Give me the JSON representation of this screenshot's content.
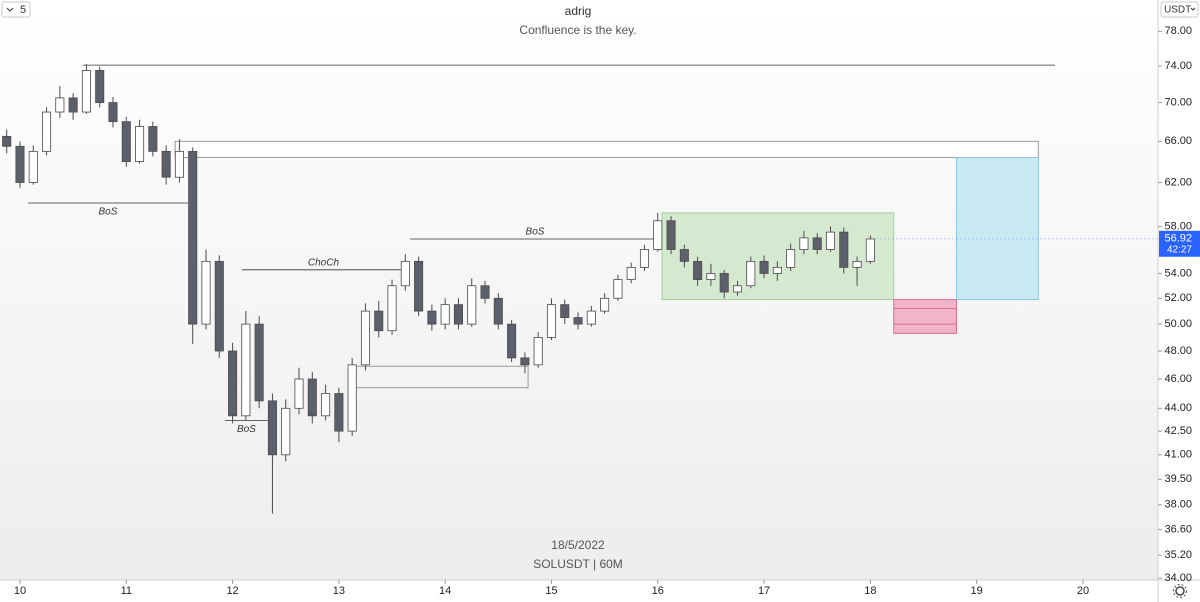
{
  "chart_data": {
    "type": "candlestick",
    "title": "adrig",
    "subtitle": "Confluence is the key.",
    "interval": "5",
    "currency": "USDT",
    "date_label": "18/5/2022",
    "symbol_label": "SOLUSDT | 60M",
    "log_scale": true,
    "up_color": "#ffffff",
    "down_color": "#5d606b",
    "wick_color": "#4a4a4a",
    "xlim": [
      9.812,
      20.706
    ],
    "xticks": [
      10,
      11,
      12,
      13,
      14,
      15,
      16,
      17,
      18,
      19,
      20
    ],
    "ylim": [
      33.9,
      81.8
    ],
    "yticks": [
      {
        "value": 78,
        "label": "78.00"
      },
      {
        "value": 74,
        "label": "74.00"
      },
      {
        "value": 70,
        "label": "70.00"
      },
      {
        "value": 66,
        "label": "66.00"
      },
      {
        "value": 62,
        "label": "62.00"
      },
      {
        "value": 58,
        "label": "58.00"
      },
      {
        "value": 54,
        "label": "54.00"
      },
      {
        "value": 52,
        "label": "52.00"
      },
      {
        "value": 50,
        "label": "50.00"
      },
      {
        "value": 48,
        "label": "48.00"
      },
      {
        "value": 46,
        "label": "46.00"
      },
      {
        "value": 44,
        "label": "44.00"
      },
      {
        "value": 42.5,
        "label": "42.50"
      },
      {
        "value": 41,
        "label": "41.00"
      },
      {
        "value": 39.5,
        "label": "39.50"
      },
      {
        "value": 38,
        "label": "38.00"
      },
      {
        "value": 36.6,
        "label": "36.60"
      },
      {
        "value": 35.2,
        "label": "35.20"
      },
      {
        "value": 34,
        "label": "34.00"
      }
    ],
    "last_price": {
      "value": 56.92,
      "label": "56.92",
      "timer": "42:27",
      "color": "#2962ff"
    },
    "x": [
      9.875,
      10.0,
      10.125,
      10.25,
      10.375,
      10.5,
      10.625,
      10.75,
      10.875,
      11.0,
      11.125,
      11.25,
      11.375,
      11.5,
      11.625,
      11.75,
      11.875,
      12.0,
      12.125,
      12.25,
      12.375,
      12.5,
      12.625,
      12.75,
      12.875,
      13.0,
      13.125,
      13.25,
      13.375,
      13.5,
      13.625,
      13.75,
      13.875,
      14.0,
      14.125,
      14.25,
      14.375,
      14.5,
      14.625,
      14.75,
      14.875,
      15.0,
      15.125,
      15.25,
      15.375,
      15.5,
      15.625,
      15.75,
      15.875,
      16.0,
      16.125,
      16.25,
      16.375,
      16.5,
      16.625,
      16.75,
      16.875,
      17.0,
      17.125,
      17.25,
      17.375,
      17.5,
      17.625,
      17.75,
      17.875,
      18.0
    ],
    "candles": [
      [
        66.5,
        67.2,
        64.8,
        65.5
      ],
      [
        65.5,
        66.0,
        61.5,
        62.0
      ],
      [
        62.0,
        65.6,
        61.8,
        65.0
      ],
      [
        65.0,
        69.5,
        64.6,
        69.0
      ],
      [
        69.0,
        71.8,
        68.4,
        70.5
      ],
      [
        70.5,
        71.0,
        68.2,
        69.0
      ],
      [
        69.0,
        74.2,
        68.8,
        73.5
      ],
      [
        73.5,
        73.9,
        69.5,
        70.0
      ],
      [
        70.0,
        70.6,
        67.4,
        68.0
      ],
      [
        68.0,
        68.5,
        63.5,
        64.0
      ],
      [
        64.0,
        68.2,
        63.8,
        67.5
      ],
      [
        67.5,
        68.0,
        64.5,
        65.0
      ],
      [
        65.0,
        65.6,
        61.8,
        62.5
      ],
      [
        62.5,
        66.2,
        62.0,
        65.0
      ],
      [
        65.0,
        65.4,
        48.5,
        50.0
      ],
      [
        50.0,
        56.0,
        49.6,
        55.0
      ],
      [
        55.0,
        55.5,
        47.5,
        48.0
      ],
      [
        48.0,
        48.6,
        43.0,
        43.5
      ],
      [
        43.5,
        51.0,
        43.2,
        50.0
      ],
      [
        50.0,
        50.6,
        44.0,
        44.5
      ],
      [
        44.5,
        45.0,
        37.5,
        41.0
      ],
      [
        41.0,
        44.6,
        40.6,
        44.0
      ],
      [
        44.0,
        46.8,
        43.6,
        46.0
      ],
      [
        46.0,
        46.5,
        43.0,
        43.5
      ],
      [
        43.5,
        45.6,
        43.2,
        45.0
      ],
      [
        45.0,
        45.4,
        41.8,
        42.5
      ],
      [
        42.5,
        47.5,
        42.2,
        47.0
      ],
      [
        47.0,
        51.6,
        46.6,
        51.0
      ],
      [
        51.0,
        51.8,
        49.0,
        49.5
      ],
      [
        49.5,
        53.5,
        49.2,
        53.0
      ],
      [
        53.0,
        55.6,
        52.6,
        55.0
      ],
      [
        55.0,
        55.4,
        50.6,
        51.0
      ],
      [
        51.0,
        51.5,
        49.5,
        50.0
      ],
      [
        50.0,
        52.0,
        49.6,
        51.5
      ],
      [
        51.5,
        52.0,
        49.6,
        50.0
      ],
      [
        50.0,
        53.6,
        49.8,
        53.0
      ],
      [
        53.0,
        53.4,
        51.6,
        52.0
      ],
      [
        52.0,
        52.4,
        49.6,
        50.0
      ],
      [
        50.0,
        50.3,
        47.2,
        47.5
      ],
      [
        47.5,
        47.9,
        46.4,
        47.0
      ],
      [
        47.0,
        49.4,
        46.8,
        49.0
      ],
      [
        49.0,
        52.0,
        48.8,
        51.5
      ],
      [
        51.5,
        51.9,
        50.0,
        50.5
      ],
      [
        50.5,
        50.9,
        49.6,
        50.0
      ],
      [
        50.0,
        51.4,
        49.8,
        51.0
      ],
      [
        51.0,
        52.4,
        50.8,
        52.0
      ],
      [
        52.0,
        53.9,
        51.8,
        53.5
      ],
      [
        53.5,
        54.9,
        53.2,
        54.5
      ],
      [
        54.5,
        56.4,
        54.2,
        56.0
      ],
      [
        56.0,
        59.2,
        55.8,
        58.5
      ],
      [
        58.5,
        58.9,
        55.6,
        56.0
      ],
      [
        56.0,
        56.4,
        54.5,
        55.0
      ],
      [
        55.0,
        55.4,
        53.0,
        53.5
      ],
      [
        53.5,
        54.8,
        53.0,
        54.0
      ],
      [
        54.0,
        54.3,
        52.0,
        52.5
      ],
      [
        52.5,
        53.4,
        52.2,
        53.0
      ],
      [
        53.0,
        55.4,
        52.8,
        55.0
      ],
      [
        55.0,
        55.5,
        53.6,
        54.0
      ],
      [
        54.0,
        55.0,
        53.4,
        54.5
      ],
      [
        54.5,
        56.5,
        54.2,
        56.0
      ],
      [
        56.0,
        57.6,
        55.6,
        57.0
      ],
      [
        57.0,
        57.4,
        55.6,
        56.0
      ],
      [
        56.0,
        58.0,
        55.8,
        57.5
      ],
      [
        57.5,
        57.9,
        54.0,
        54.5
      ],
      [
        54.5,
        55.4,
        53.0,
        55.0
      ],
      [
        55.0,
        57.2,
        54.8,
        56.9
      ]
    ],
    "levels": [
      {
        "price": 74.1,
        "x": [
          10.593,
          19.737
        ]
      },
      {
        "price": 60.1,
        "x": [
          10.075,
          11.58
        ],
        "label": "BoS",
        "label_pos": "below"
      },
      {
        "price": 43.2,
        "x": [
          11.93,
          12.33
        ],
        "label": "BoS",
        "label_pos": "below"
      },
      {
        "price": 54.3,
        "x": [
          12.09,
          13.62
        ],
        "label": "ChoCh",
        "label_pos": "above"
      },
      {
        "price": 56.9,
        "x": [
          13.67,
          16.02
        ],
        "label": "BoS",
        "label_pos": "above"
      }
    ],
    "zones": [
      {
        "x": [
          11.46,
          19.58
        ],
        "y": [
          64.4,
          66.0
        ],
        "fill": "#ffffff",
        "stroke": "#9a9a9a"
      },
      {
        "x": [
          13.15,
          14.78
        ],
        "y": [
          45.4,
          46.9
        ],
        "fill": "none",
        "stroke": "#9a9a9a"
      },
      {
        "x": [
          16.04,
          18.22
        ],
        "y": [
          51.9,
          59.2
        ],
        "fill": "#cfe6c9",
        "stroke": "#9fcf95"
      },
      {
        "x": [
          18.22,
          18.81
        ],
        "y": [
          49.3,
          51.9
        ],
        "fill": "#f0a8c0",
        "stroke": "#dc6b90",
        "lines": [
          51.2,
          50.0
        ]
      },
      {
        "x": [
          18.81,
          19.58
        ],
        "y": [
          51.9,
          64.4
        ],
        "fill": "#bfe6f0",
        "stroke": "#8cc6e0"
      }
    ]
  }
}
